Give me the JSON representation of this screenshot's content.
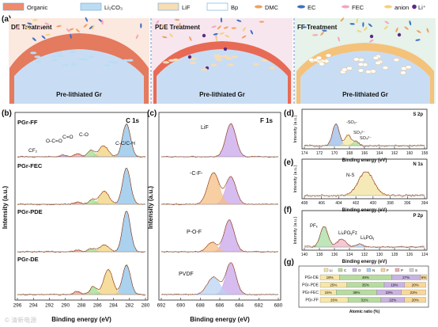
{
  "legend": [
    {
      "label": "Organic",
      "color": "#f08a6e",
      "kind": "rect"
    },
    {
      "label": "Li₂CO₃",
      "color": "#bcdcf2",
      "kind": "rect"
    },
    {
      "label": "LiF",
      "color": "#f7dcb4",
      "kind": "rect"
    },
    {
      "label": "Bp",
      "color": "#ffffff",
      "kind": "rect"
    },
    {
      "label": "DMC",
      "color": "#f2a15a",
      "kind": "dash"
    },
    {
      "label": "EC",
      "color": "#3f6fc4",
      "kind": "dash"
    },
    {
      "label": "FEC",
      "color": "#f3a6bf",
      "kind": "dash"
    },
    {
      "label": "anion",
      "color": "#f5d27a",
      "kind": "dash"
    },
    {
      "label": "Li⁺",
      "color": "#5b2a86",
      "kind": "dot"
    }
  ],
  "panel_a": {
    "tag": "(a)",
    "scenes": [
      {
        "title": "DE Treatment",
        "base": "Pre-lithiated Gr",
        "bg": "#fbe8df"
      },
      {
        "title": "PDE Treatment",
        "base": "Pre-lithiated Gr",
        "bg": "#f7e6ee"
      },
      {
        "title": "FF Treatment",
        "base": "Pre-lithiated Gr",
        "bg": "#e6f2ea"
      }
    ]
  },
  "panel_b": {
    "tag": "(b)",
    "region": "C 1s",
    "ylabel": "Intensity (a.u.)",
    "xlabel": "Binding energy (eV)",
    "samples": [
      "PGr-FF",
      "PGr-FEC",
      "PGr-PDE",
      "PGr-DE"
    ],
    "peak_labels": [
      "O-C=O",
      "C=O",
      "C-O",
      "C-C/C-H",
      "CF₂"
    ],
    "ticks": [
      "296",
      "294",
      "292",
      "290",
      "288",
      "286",
      "284",
      "282",
      "280"
    ]
  },
  "panel_c": {
    "tag": "(c)",
    "region": "F 1s",
    "ylabel": "Intensity (a.u.)",
    "xlabel": "Binding energy (eV)",
    "peak_labels": [
      "LiF",
      "-C-F-",
      "P-O-F",
      "PVDF"
    ],
    "ticks": [
      "692",
      "690",
      "688",
      "686",
      "684",
      "682",
      "680"
    ]
  },
  "panel_d": {
    "tag": "(d)",
    "region": "S 2p",
    "ylabel": "Intensity (a.u.)",
    "xlabel": "Binding energy (eV)",
    "peak_labels": [
      "-SO₂-",
      "SO₃²⁻",
      "SO₄²⁻"
    ],
    "ticks": [
      "174",
      "172",
      "170",
      "168",
      "166",
      "164",
      "162",
      "160",
      "158"
    ]
  },
  "panel_e": {
    "tag": "(e)",
    "region": "N 1s",
    "ylabel": "Intensity (a.u.)",
    "xlabel": "Binding energy (eV)",
    "peak_labels": [
      "N-S"
    ],
    "ticks": [
      "408",
      "406",
      "404",
      "402",
      "400",
      "398",
      "396",
      "394"
    ]
  },
  "panel_f": {
    "tag": "(f)",
    "region": "P 2p",
    "ylabel": "Intensity (a.u.)",
    "xlabel": "Binding energy (eV)",
    "peak_labels": [
      "PFₓ",
      "LiₓPOᵧFz",
      "LiₓPOᵧ"
    ],
    "ticks": [
      "140",
      "138",
      "136",
      "134",
      "132",
      "130",
      "128",
      "126",
      "124"
    ]
  },
  "panel_g": {
    "tag": "(g)",
    "xlabel": "Atomic ratio (%)",
    "chart_data": {
      "type": "bar",
      "categories": [
        "PGr-DE",
        "PGr-PDE",
        "PGr-FEC",
        "PGr-FF"
      ],
      "series": [
        {
          "name": "Li",
          "color": "#f7e6a6",
          "values": [
            18,
            25,
            15,
            26
          ]
        },
        {
          "name": "C",
          "color": "#b7dba0",
          "values": [
            49,
            35,
            38,
            31
          ]
        },
        {
          "name": "O",
          "color": "#c9b3e2",
          "values": [
            27,
            19,
            23,
            22
          ]
        },
        {
          "name": "F",
          "color": "#f7d79a",
          "values": [
            6,
            20,
            23,
            20
          ]
        }
      ],
      "legend_labels": [
        "Li",
        "C",
        "O",
        "N",
        "F",
        "P",
        "S"
      ],
      "label_texts": [
        [
          "18%",
          "49%",
          "27%",
          "6%"
        ],
        [
          "25%",
          "35%",
          "19%",
          "20%"
        ],
        [
          "15%",
          "38%",
          "23%",
          "23%"
        ],
        [
          "26%",
          "31%",
          "22%",
          "20%"
        ]
      ],
      "xlim": [
        0,
        100
      ]
    }
  },
  "watermark": "© 清新电源"
}
